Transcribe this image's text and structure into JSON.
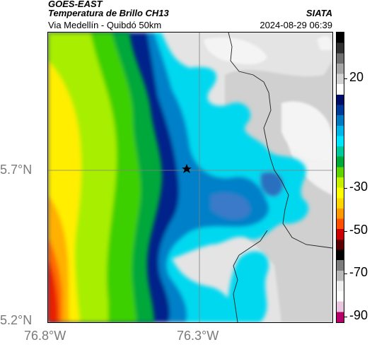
{
  "header": {
    "title": "GOES-EAST",
    "subtitle": "Temperatura de Brillo CH13",
    "brand": "SIATA",
    "route": "Via Medellín - Quibdó 50km",
    "timestamp": "2024-08-29 06:39"
  },
  "map": {
    "latitude_labels": [
      "5.7°N",
      "5.2°N"
    ],
    "longitude_labels": [
      "76.8°W",
      "76.3°W"
    ],
    "grid": true,
    "marker": "star-icon"
  },
  "colorbar": {
    "tick_labels": [
      "20",
      "-30",
      "-50",
      "-70",
      "-90"
    ],
    "colors": [
      "#b5006a",
      "#e8c6e0",
      "#ffffff",
      "#f0f0f0",
      "#b9b9b9",
      "#7c7c7c",
      "#000000",
      "#5a0000",
      "#cc0000",
      "#ff5000",
      "#ff9900",
      "#ffd700",
      "#ffff00",
      "#c7f000",
      "#5fd400",
      "#00a83a",
      "#00c99b",
      "#00e5ff",
      "#00b6e6",
      "#0079c0",
      "#003a99",
      "#000d66",
      "#ffffff",
      "#d2d2d2",
      "#a5a5a5",
      "#6f6f6f",
      "#303030",
      "#000000"
    ]
  }
}
